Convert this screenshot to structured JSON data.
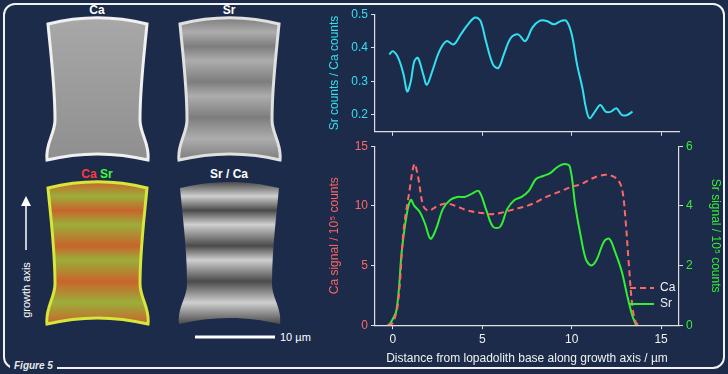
{
  "chart_data": [
    {
      "type": "line",
      "y_label": "Sr counts / Ca counts",
      "x": [
        -0.2,
        0,
        0.3,
        0.6,
        0.8,
        1.0,
        1.2,
        1.4,
        1.7,
        1.9,
        2.2,
        2.6,
        3.0,
        3.4,
        3.8,
        4.2,
        4.6,
        4.9,
        5.2,
        5.6,
        5.9,
        6.2,
        6.6,
        7.0,
        7.4,
        7.8,
        8.2,
        8.6,
        9.0,
        9.4,
        9.7,
        10.0,
        10.3,
        10.6,
        10.8,
        11.0,
        11.3,
        11.6,
        11.9,
        12.2,
        12.5,
        12.8,
        13.1,
        13.4
      ],
      "values": [
        0.38,
        0.39,
        0.37,
        0.32,
        0.27,
        0.3,
        0.36,
        0.37,
        0.32,
        0.29,
        0.33,
        0.39,
        0.42,
        0.41,
        0.44,
        0.47,
        0.49,
        0.48,
        0.42,
        0.35,
        0.34,
        0.38,
        0.43,
        0.44,
        0.42,
        0.46,
        0.48,
        0.48,
        0.47,
        0.48,
        0.48,
        0.44,
        0.35,
        0.28,
        0.22,
        0.19,
        0.21,
        0.23,
        0.21,
        0.21,
        0.22,
        0.2,
        0.2,
        0.21
      ],
      "color": "#33e0f0",
      "xlim": [
        -1,
        16
      ],
      "xticks": [
        0,
        5,
        10,
        15
      ],
      "ylim": [
        0.15,
        0.5
      ],
      "yticks": [
        0.2,
        0.3,
        0.4,
        0.5
      ],
      "grid": false,
      "tick_labels": "y"
    },
    {
      "type": "line",
      "x_label": "Distance from lopadolith base along growth axis / µm",
      "y_label": "Ca signal / 10⁵ counts",
      "y2_label": "Sr signal / 10⁵ counts",
      "xlim": [
        -1,
        16
      ],
      "xticks": [
        0,
        5,
        10,
        15
      ],
      "ylim": [
        0,
        15
      ],
      "yticks": [
        0,
        5,
        10,
        15
      ],
      "y2lim": [
        0,
        6
      ],
      "y2ticks": [
        0,
        2,
        4,
        6
      ],
      "grid": false,
      "legend": "lower right",
      "series": [
        {
          "name": "Ca",
          "color": "#ff6666",
          "line_style": "dashed",
          "x": [
            -0.3,
            0,
            0.3,
            0.6,
            0.9,
            1.2,
            1.4,
            1.7,
            2.0,
            2.5,
            3.0,
            3.5,
            4.0,
            4.5,
            5.0,
            5.5,
            6.0,
            6.5,
            7.0,
            7.5,
            8.0,
            8.5,
            9.0,
            9.5,
            10.0,
            10.5,
            11.0,
            11.5,
            12.0,
            12.5,
            12.8,
            13.0,
            13.2,
            13.4,
            13.6,
            13.8
          ],
          "values": [
            0,
            0.2,
            2,
            8,
            11,
            13.5,
            12.5,
            10,
            9.6,
            10,
            10.2,
            10,
            9.7,
            9.5,
            9.4,
            9.3,
            9.4,
            9.6,
            9.8,
            10,
            10.3,
            10.7,
            11,
            11.3,
            11.6,
            11.8,
            12.2,
            12.5,
            12.6,
            12.3,
            11.5,
            9,
            5,
            1.5,
            0.2,
            0
          ]
        },
        {
          "name": "Sr",
          "color": "#33ee33",
          "line_style": "solid",
          "axis": "y2",
          "x": [
            -0.2,
            0.2,
            0.5,
            0.8,
            1.0,
            1.2,
            1.5,
            1.8,
            2.1,
            2.4,
            2.8,
            3.2,
            3.6,
            4.0,
            4.4,
            4.8,
            5.2,
            5.6,
            6.0,
            6.4,
            6.8,
            7.2,
            7.6,
            8.0,
            8.4,
            8.8,
            9.2,
            9.6,
            9.9,
            10.2,
            10.5,
            10.8,
            11.1,
            11.4,
            11.8,
            12.1,
            12.4,
            12.8,
            13.1,
            13.4,
            13.6
          ],
          "values": [
            0,
            0.5,
            2.5,
            3.8,
            4.2,
            4.0,
            3.8,
            3.4,
            2.9,
            3.2,
            3.9,
            4.2,
            4.3,
            4.3,
            4.4,
            4.5,
            3.9,
            3.3,
            3.3,
            3.9,
            4.2,
            4.3,
            4.5,
            4.9,
            5.0,
            5.1,
            5.3,
            5.4,
            5.3,
            4.0,
            3.0,
            2.2,
            2.0,
            2.2,
            2.8,
            2.9,
            2.5,
            1.8,
            1.0,
            0.3,
            0
          ]
        }
      ]
    }
  ],
  "panel": {
    "images": [
      {
        "label": "Ca"
      },
      {
        "label": "Sr"
      },
      {
        "label_parts": [
          {
            "text": "Ca",
            "color": "#ff3a3a"
          },
          {
            "text": "Sr",
            "color": "#3aff3a"
          }
        ]
      },
      {
        "label": "Sr / Ca"
      }
    ],
    "arrow_label": "growth axis",
    "scale_bar": "10 µm",
    "figure_label": "Figure 5"
  }
}
